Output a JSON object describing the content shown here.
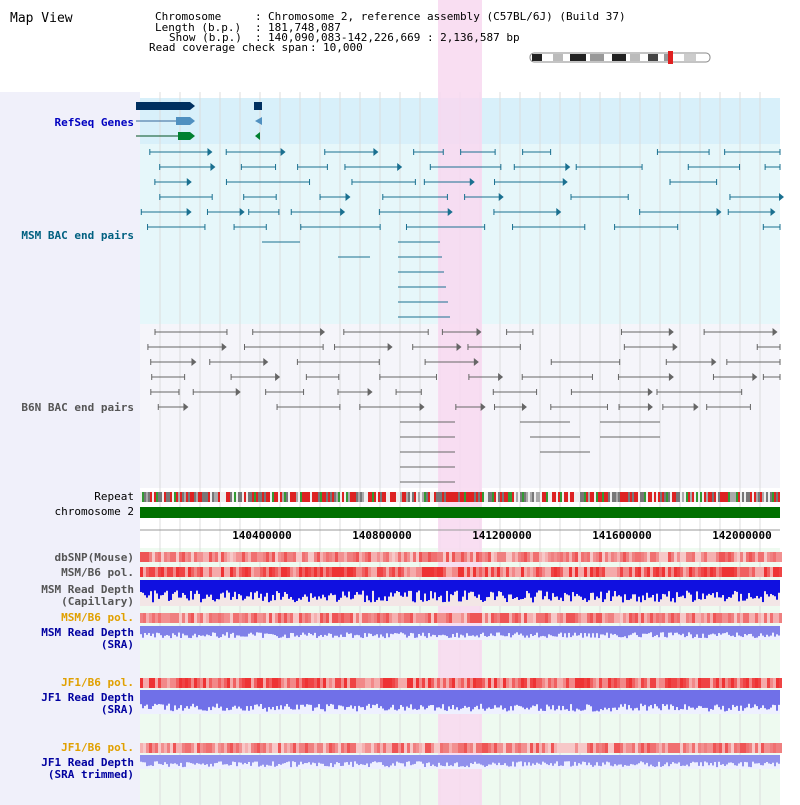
{
  "page": {
    "title": "Map View"
  },
  "info": {
    "chromosome_label": "Chromosome",
    "chromosome_value": "Chromosome 2, reference assembly (C57BL/6J) (Build 37)",
    "length_label": "Length (b.p.)",
    "length_value": "181,748,087",
    "show_label": "Show (b.p.)",
    "show_value": "140,090,083-142,226,669 : 2,136,587 bp",
    "coverage_label": "Read coverage check span",
    "coverage_value": "10,000"
  },
  "tracks": {
    "refseq": "RefSeq Genes",
    "msm_bac": "MSM BAC end pairs",
    "b6n_bac": "B6N BAC end pairs",
    "repeat": "Repeat",
    "chromosome": "chromosome 2",
    "dbsnp": "dbSNP(Mouse)",
    "msm_b6_pol_1": "MSM/B6 pol.",
    "msm_depth_cap_1": "MSM Read Depth",
    "msm_depth_cap_2": "(Capillary)",
    "msm_b6_pol_2": "MSM/B6 pol.",
    "msm_depth_sra_1": "MSM Read Depth",
    "msm_depth_sra_2": "(SRA)",
    "jf1_b6_pol_1": "JF1/B6 pol.",
    "jf1_depth_sra_1": "JF1 Read Depth",
    "jf1_depth_sra_2": "(SRA)",
    "jf1_b6_pol_2": "JF1/B6 pol.",
    "jf1_depth_trim_1": "JF1 Read Depth",
    "jf1_depth_trim_2": "(SRA trimmed)"
  },
  "axis": {
    "ticks": [
      "140400000",
      "140800000",
      "141200000",
      "141600000",
      "142000000"
    ]
  },
  "colors": {
    "sidebar": "#f0f0ff",
    "refseq_label": "#0000c0",
    "msm_label": "#006080",
    "b6n_label": "#555555",
    "pol_label": "#e0a000",
    "depth_label": "#0000a0",
    "highlight": "#f8d8f0",
    "chromosome_bar": "#007000"
  }
}
